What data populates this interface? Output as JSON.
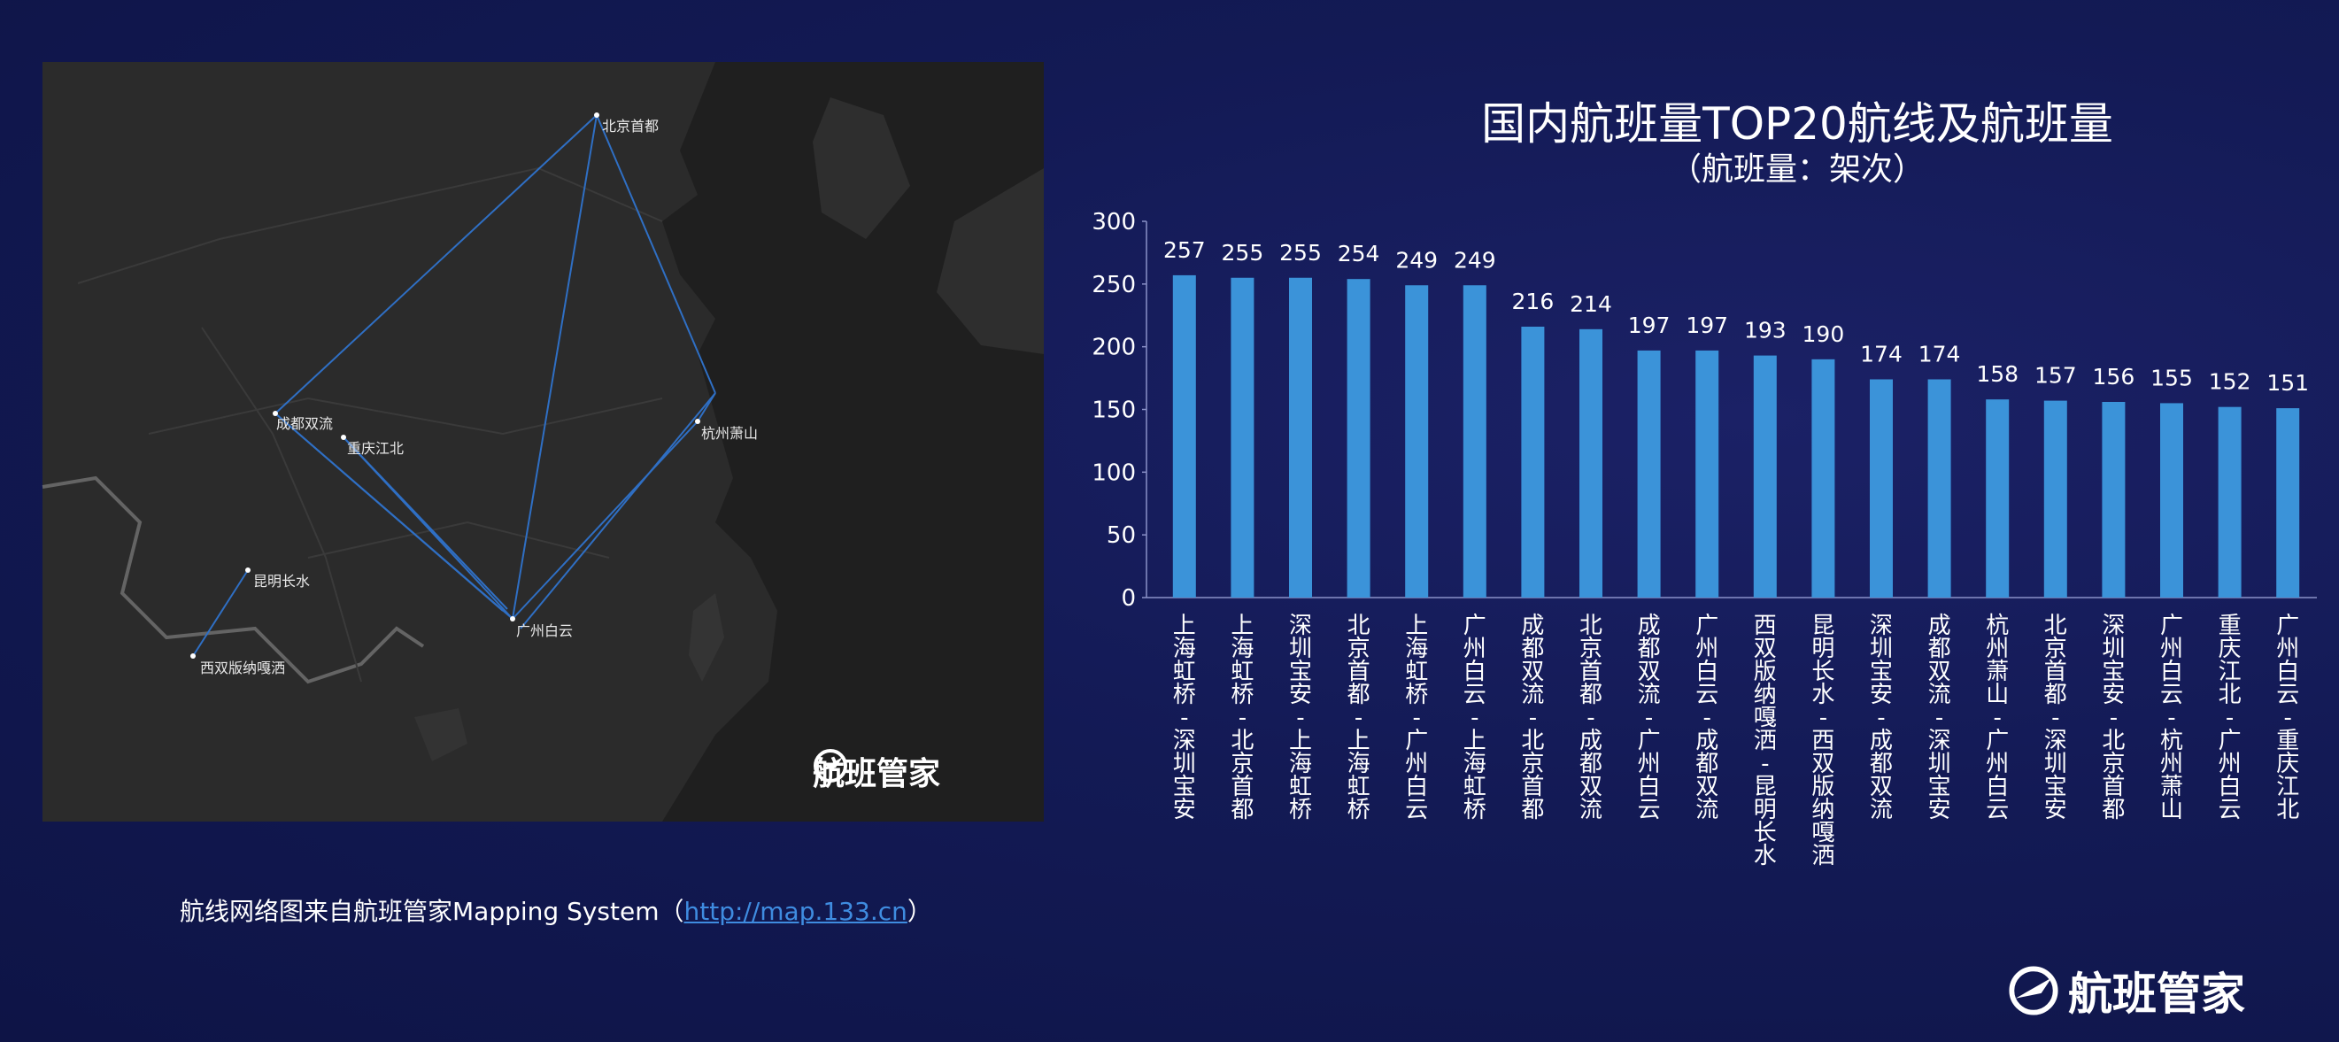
{
  "map": {
    "cities": [
      {
        "name": "北京首都"
      },
      {
        "name": "成都双流"
      },
      {
        "name": "重庆江北"
      },
      {
        "name": "杭州萧山"
      },
      {
        "name": "昆明长水"
      },
      {
        "name": "西双版纳嘎洒"
      },
      {
        "name": "广州白云"
      }
    ],
    "logo_text": "航班管家",
    "logo_icon": "plane-globe-logo-icon"
  },
  "caption": {
    "prefix": "航线网络图来自航班管家Mapping System（",
    "link": "http://map.133.cn",
    "suffix": "）"
  },
  "chart_title": "国内航班量TOP20航线及航班量",
  "chart_subtitle": "（航班量：架次）",
  "chart_data": {
    "type": "bar",
    "title": "国内航班量TOP20航线及航班量",
    "subtitle": "（航班量：架次）",
    "ylim": [
      0,
      300
    ],
    "yticks": [
      0,
      50,
      100,
      150,
      200,
      250,
      300
    ],
    "bar_color": "#3b93d9",
    "categories": [
      "上海虹桥-深圳宝安",
      "上海虹桥-北京首都",
      "深圳宝安-上海虹桥",
      "北京首都-上海虹桥",
      "上海虹桥-广州白云",
      "广州白云-上海虹桥",
      "成都双流-北京首都",
      "北京首都-成都双流",
      "成都双流-广州白云",
      "广州白云-成都双流",
      "西双版纳嘎洒-昆明长水",
      "昆明长水-西双版纳嘎洒",
      "深圳宝安-成都双流",
      "成都双流-深圳宝安",
      "杭州萧山-广州白云",
      "北京首都-深圳宝安",
      "深圳宝安-北京首都",
      "广州白云-杭州萧山",
      "重庆江北-广州白云",
      "广州白云-重庆江北"
    ],
    "values": [
      257,
      255,
      255,
      254,
      249,
      249,
      216,
      214,
      197,
      197,
      193,
      190,
      174,
      174,
      158,
      157,
      156,
      155,
      152,
      151
    ]
  },
  "brand": {
    "logo_text": "航班管家",
    "logo_icon": "plane-globe-logo-icon"
  }
}
